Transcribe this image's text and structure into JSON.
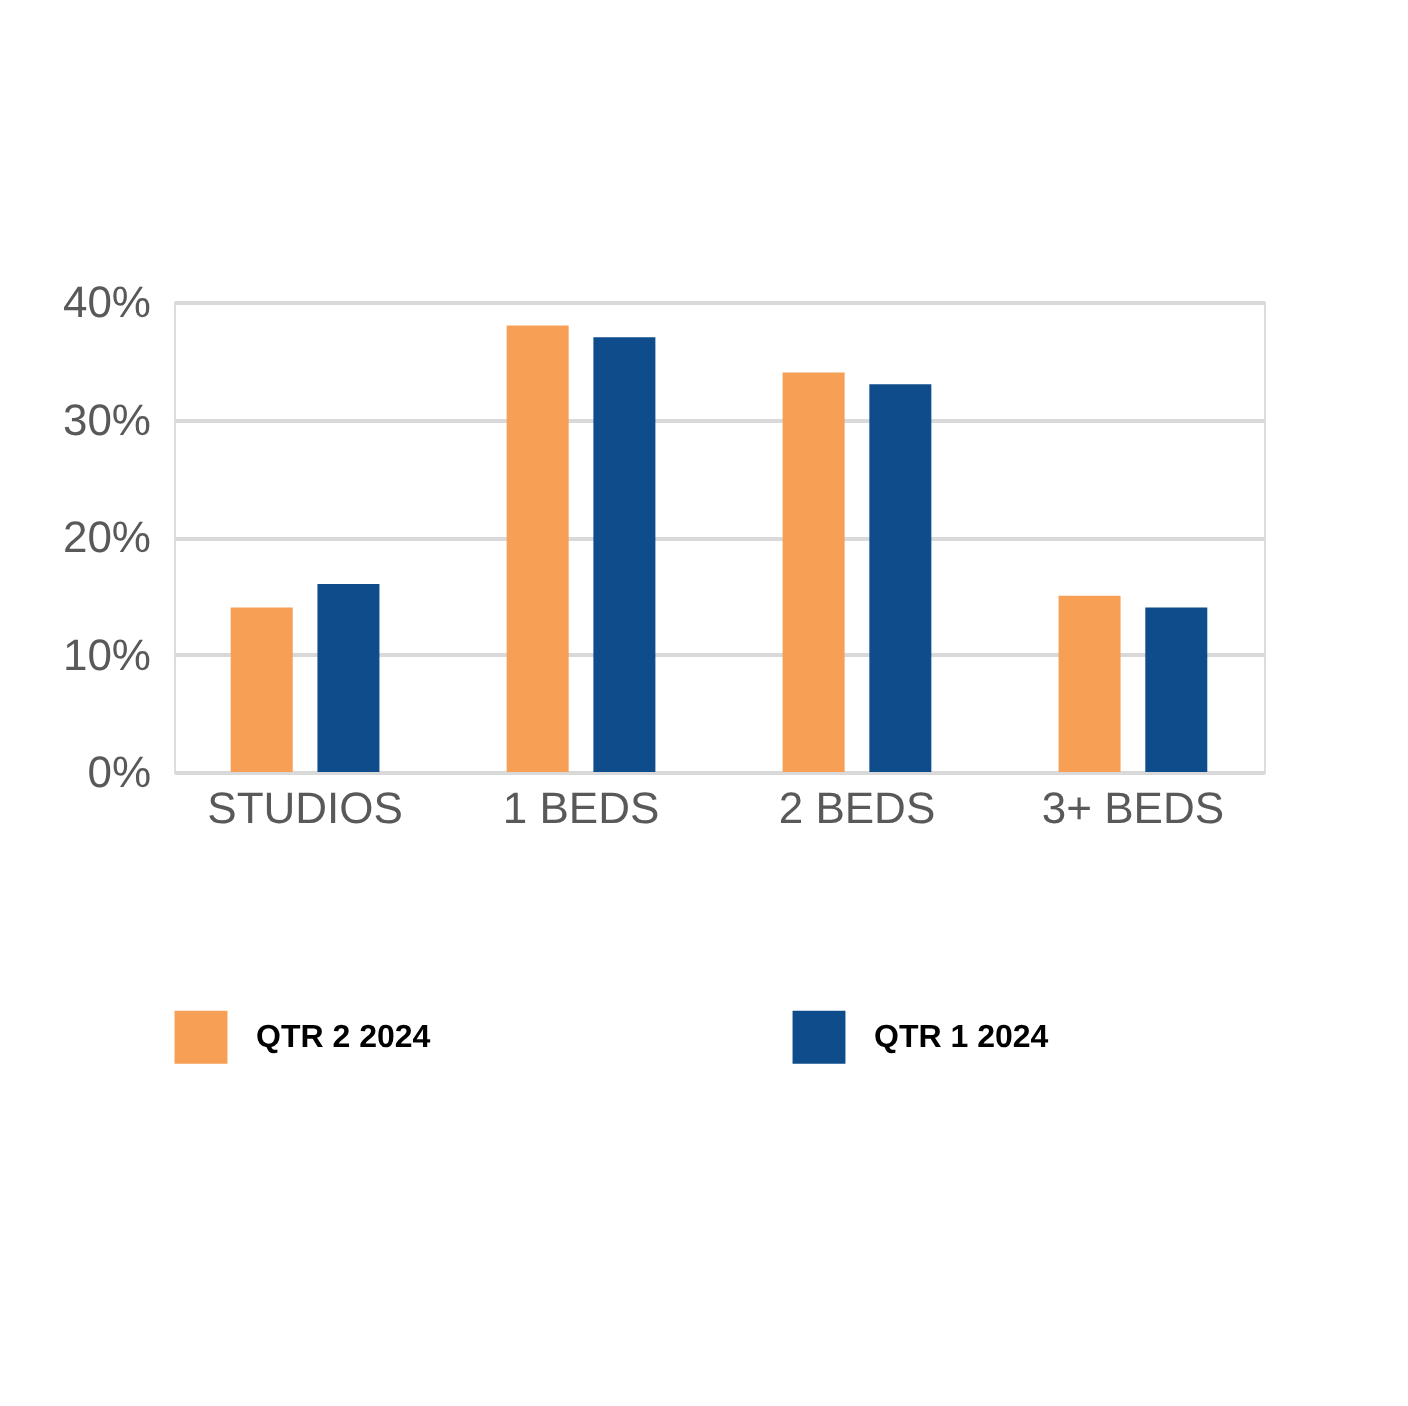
{
  "chart_data": {
    "type": "bar",
    "categories": [
      "STUDIOS",
      "1 BEDS",
      "2 BEDS",
      "3+ BEDS"
    ],
    "series": [
      {
        "name": "QTR 2 2024",
        "color": "#f79f55",
        "values": [
          14,
          38,
          34,
          15
        ]
      },
      {
        "name": "QTR 1 2024",
        "color": "#0e4c8c",
        "values": [
          16,
          37,
          33,
          14
        ]
      }
    ],
    "ylim": [
      0,
      40
    ],
    "yticks": [
      {
        "value": 0,
        "label": "0%"
      },
      {
        "value": 10,
        "label": "10%"
      },
      {
        "value": 20,
        "label": "20%"
      },
      {
        "value": 30,
        "label": "30%"
      },
      {
        "value": 40,
        "label": "40%"
      }
    ],
    "grid": "y",
    "legend": "bottom"
  }
}
